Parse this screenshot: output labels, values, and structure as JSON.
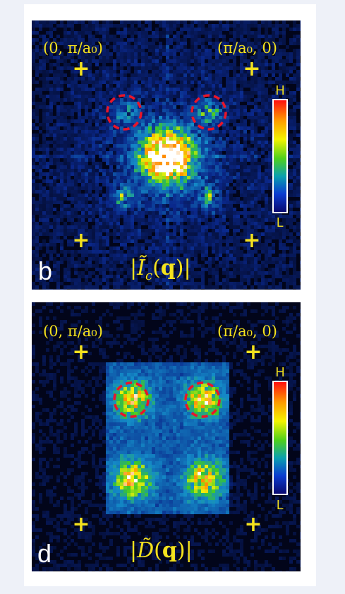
{
  "panels": [
    {
      "id": "b",
      "letter": "b",
      "label_tl": "(0, π/a₀)",
      "label_tr": "(π/a₀, 0)",
      "formula_symbol": "Ĩ",
      "formula_sub": "c",
      "formula_arg": "q",
      "colorbar": {
        "high": "H",
        "low": "L"
      }
    },
    {
      "id": "d",
      "letter": "d",
      "label_tl": "(0, π/a₀)",
      "label_tr": "(π/a₀, 0)",
      "formula_symbol": "D̃",
      "formula_arg": "q",
      "colorbar": {
        "high": "H",
        "low": "L"
      }
    }
  ],
  "colors": {
    "background": "#02051a",
    "label": "#f4e21e",
    "circle": "#e8162a",
    "low": "#0a0a70",
    "high": "#ff1010"
  }
}
